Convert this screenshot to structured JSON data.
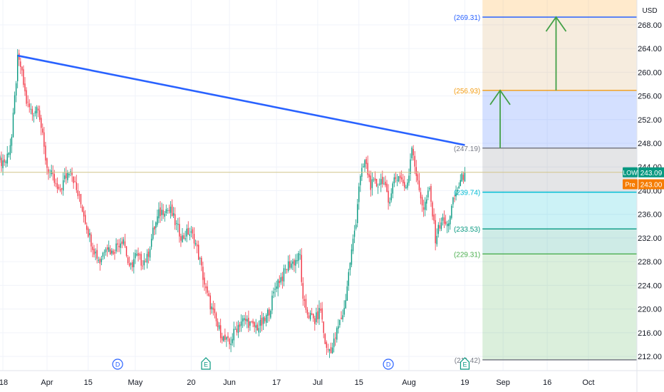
{
  "currency": "USD",
  "chart_data": {
    "type": "candlestick",
    "y_axis_labels": [
      "268.00",
      "264.00",
      "260.00",
      "256.00",
      "252.00",
      "248.00",
      "244.00",
      "240.00",
      "236.00",
      "232.00",
      "228.00",
      "224.00",
      "220.00",
      "216.00",
      "212.00"
    ],
    "ylim": [
      209.6,
      272.2
    ],
    "x_axis_labels": [
      {
        "label": "18",
        "day": -2
      },
      {
        "label": "Apr",
        "day": 13
      },
      {
        "label": "15",
        "day": 27
      },
      {
        "label": "May",
        "day": 43
      },
      {
        "label": "20",
        "day": 62
      },
      {
        "label": "Jun",
        "day": 75
      },
      {
        "label": "17",
        "day": 91
      },
      {
        "label": "Jul",
        "day": 105
      },
      {
        "label": "15",
        "day": 119
      },
      {
        "label": "Aug",
        "day": 136
      },
      {
        "label": "19",
        "day": 155
      },
      {
        "label": "Sep",
        "day": 168
      },
      {
        "label": "16",
        "day": 183
      },
      {
        "label": "Oct",
        "day": 197
      }
    ],
    "price_anchors": [
      [
        -5,
        245
      ],
      [
        -1,
        245
      ],
      [
        1,
        249
      ],
      [
        3,
        262
      ],
      [
        4,
        261
      ],
      [
        6,
        255
      ],
      [
        8,
        253
      ],
      [
        10,
        254.5
      ],
      [
        12,
        247
      ],
      [
        13,
        244
      ],
      [
        15,
        242
      ],
      [
        17,
        239.5
      ],
      [
        19,
        242
      ],
      [
        21,
        244
      ],
      [
        23,
        240
      ],
      [
        25,
        237
      ],
      [
        27,
        233
      ],
      [
        29,
        230
      ],
      [
        31,
        228
      ],
      [
        33,
        231
      ],
      [
        35,
        229.5
      ],
      [
        37,
        231
      ],
      [
        39,
        232
      ],
      [
        41,
        226.5
      ],
      [
        43,
        229
      ],
      [
        45,
        228
      ],
      [
        47,
        228.5
      ],
      [
        49,
        233
      ],
      [
        51,
        236
      ],
      [
        53,
        237
      ],
      [
        55,
        236.5
      ],
      [
        57,
        234
      ],
      [
        59,
        232
      ],
      [
        61,
        233
      ],
      [
        63,
        232
      ],
      [
        65,
        228
      ],
      [
        67,
        223
      ],
      [
        69,
        220
      ],
      [
        71,
        217
      ],
      [
        73,
        215
      ],
      [
        75,
        214
      ],
      [
        77,
        216.5
      ],
      [
        79,
        218
      ],
      [
        81,
        218
      ],
      [
        83,
        217
      ],
      [
        85,
        217
      ],
      [
        87,
        218
      ],
      [
        89,
        220.5
      ],
      [
        91,
        224.5
      ],
      [
        93,
        225.5
      ],
      [
        95,
        227.5
      ],
      [
        97,
        228
      ],
      [
        99,
        229
      ],
      [
        100,
        221
      ],
      [
        102,
        219
      ],
      [
        104,
        218
      ],
      [
        106,
        220
      ],
      [
        107,
        216
      ],
      [
        108,
        213
      ],
      [
        110,
        213.5
      ],
      [
        112,
        217
      ],
      [
        114,
        220
      ],
      [
        116,
        228
      ],
      [
        118,
        235
      ],
      [
        119,
        241
      ],
      [
        121,
        245
      ],
      [
        123,
        241
      ],
      [
        125,
        241
      ],
      [
        127,
        242
      ],
      [
        129,
        238
      ],
      [
        131,
        242
      ],
      [
        133,
        242.5
      ],
      [
        135,
        240
      ],
      [
        136,
        243
      ],
      [
        137,
        248
      ],
      [
        139,
        241
      ],
      [
        141,
        237
      ],
      [
        143,
        240
      ],
      [
        145,
        232
      ],
      [
        147,
        235
      ],
      [
        149,
        234
      ],
      [
        151,
        238
      ],
      [
        153,
        241
      ],
      [
        155,
        243.09
      ]
    ],
    "current_price": "243.09",
    "premarket_price": "243.00",
    "current_label": "LOW",
    "premarket_label": "Pre",
    "trendline": {
      "start": [
        3,
        262.8
      ],
      "end": [
        155,
        247.7
      ]
    },
    "fib_levels": [
      {
        "value": 269.31,
        "label": "(269.31)",
        "color": "#2962ff"
      },
      {
        "value": 256.93,
        "label": "(256.93)",
        "color": "#f39c12"
      },
      {
        "value": 247.19,
        "label": "(247.19)",
        "color": "#787b86"
      },
      {
        "value": 239.74,
        "label": "(239.74)",
        "color": "#00bcd4"
      },
      {
        "value": 233.53,
        "label": "(233.53)",
        "color": "#089981"
      },
      {
        "value": 229.31,
        "label": "(229.31)",
        "color": "#4caf50"
      },
      {
        "value": 211.42,
        "label": "(211.42)",
        "color": "#787b86"
      }
    ],
    "fib_zones": [
      {
        "from": 272.2,
        "to": 269.31,
        "color": "#ff9800"
      },
      {
        "from": 269.31,
        "to": 256.93,
        "color": "#d4a15a"
      },
      {
        "from": 256.93,
        "to": 247.19,
        "color": "#2962ff"
      },
      {
        "from": 247.19,
        "to": 239.74,
        "color": "#787b86"
      },
      {
        "from": 239.74,
        "to": 233.53,
        "color": "#00bcd4"
      },
      {
        "from": 233.53,
        "to": 229.31,
        "color": "#089981"
      },
      {
        "from": 229.31,
        "to": 211.42,
        "color": "#4caf50"
      }
    ],
    "arrows": [
      {
        "x_day": 167,
        "from": 247.19,
        "to": 256.93
      },
      {
        "x_day": 186,
        "from": 256.93,
        "to": 269.31
      }
    ],
    "event_markers": [
      {
        "day": 37,
        "letter": "D",
        "color": "#2962ff"
      },
      {
        "day": 67,
        "letter": "E",
        "color": "#089981"
      },
      {
        "day": 129,
        "letter": "D",
        "color": "#2962ff"
      },
      {
        "day": 155,
        "letter": "E",
        "color": "#089981"
      }
    ]
  }
}
